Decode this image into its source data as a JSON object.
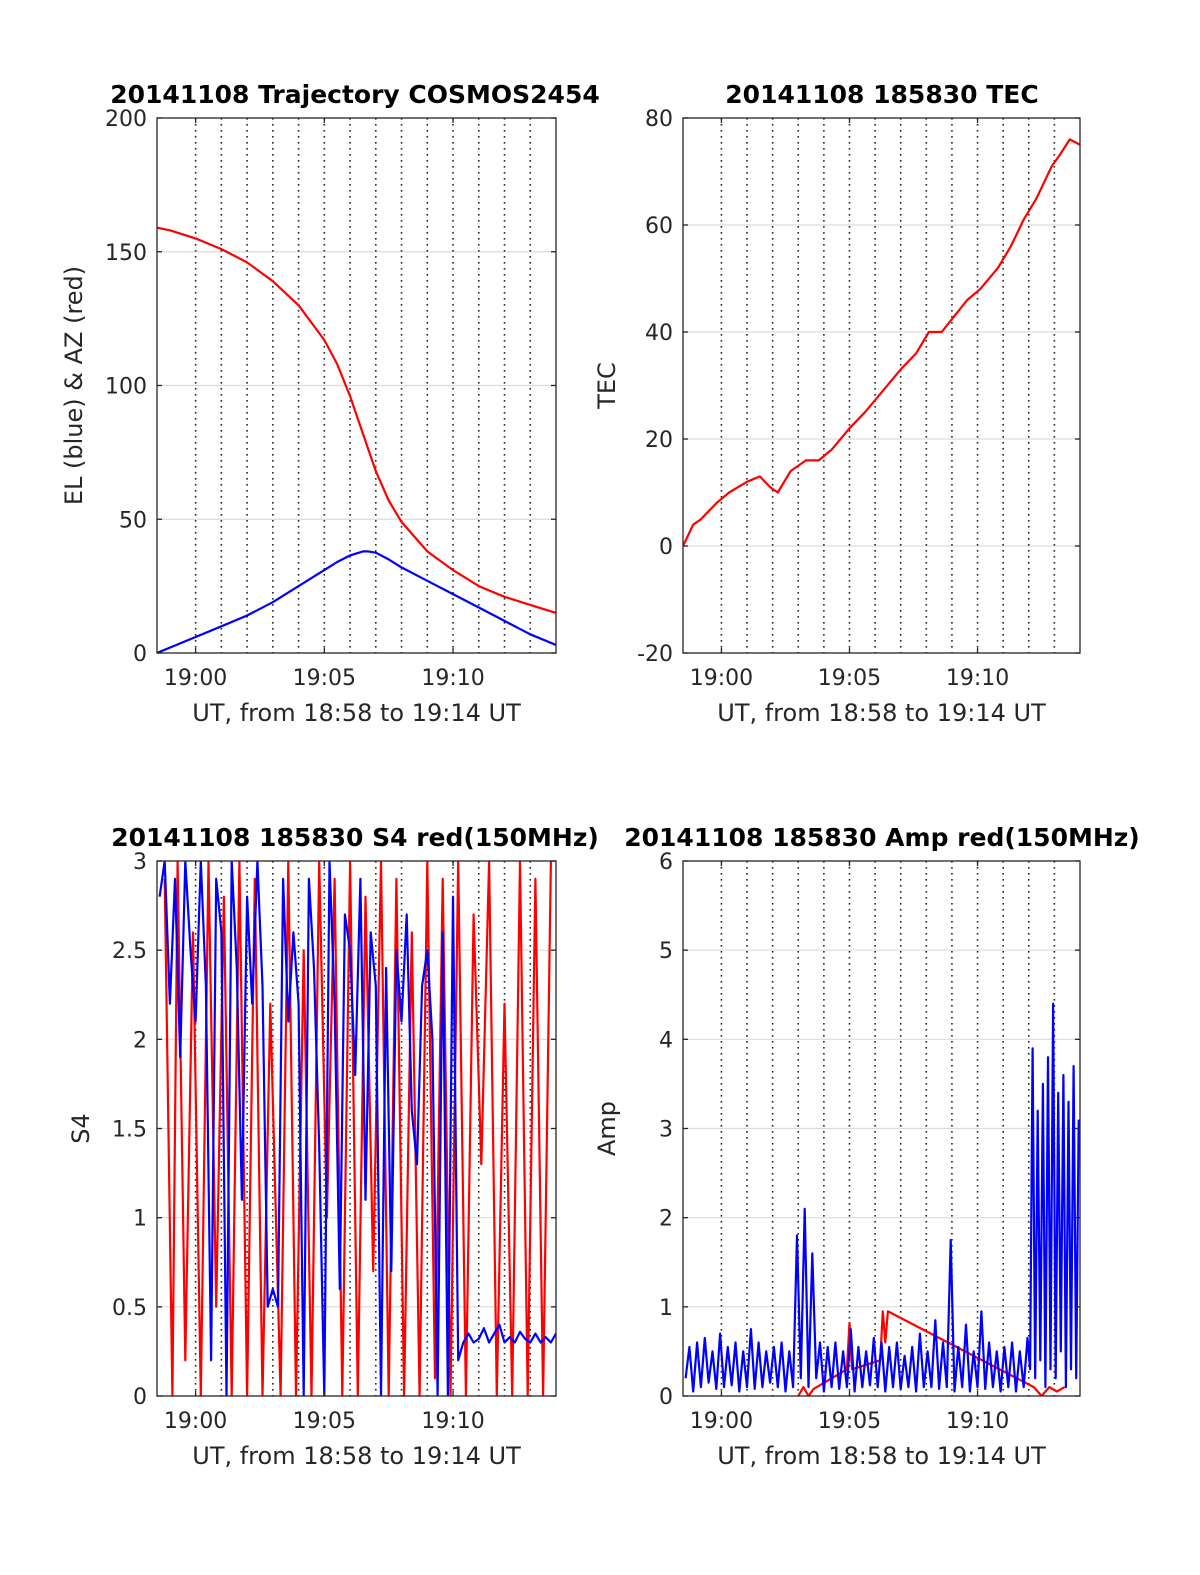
{
  "colors": {
    "red": "#ff0000",
    "blue": "#0000ff",
    "axis": "#262626",
    "grid": "#dcdcdc"
  },
  "chart_data": [
    {
      "type": "line",
      "title": "20141108 Trajectory COSMOS2454",
      "xlabel": "UT, from 18:58 to 19:14 UT",
      "ylabel": "EL (blue) & AZ (red)",
      "xlim_min": [
        1138.5,
        1154
      ],
      "ylim": [
        0,
        200
      ],
      "yticks": [
        0,
        50,
        100,
        150,
        200
      ],
      "ytick_labels": [
        "0",
        "50",
        "100",
        "150",
        "200"
      ],
      "xticks_min": [
        1140,
        1145,
        1150
      ],
      "xtick_labels": [
        "19:00",
        "19:05",
        "19:10"
      ],
      "vgrid_min": [
        1140,
        1141,
        1142,
        1143,
        1144,
        1145,
        1146,
        1147,
        1148,
        1149,
        1150,
        1151,
        1152,
        1153
      ],
      "grid": true,
      "series": [
        {
          "color": "red",
          "x": [
            1138.5,
            1139,
            1140,
            1141,
            1142,
            1143,
            1144,
            1145,
            1145.5,
            1146,
            1146.5,
            1147,
            1147.5,
            1148,
            1149,
            1150,
            1151,
            1152,
            1153,
            1154
          ],
          "y": [
            159,
            158,
            155,
            151,
            146,
            139,
            130,
            117,
            108,
            96,
            82,
            68,
            57,
            49,
            38,
            31,
            25,
            21,
            18,
            15
          ]
        },
        {
          "color": "blue",
          "x": [
            1138.5,
            1139,
            1140,
            1141,
            1142,
            1143,
            1144,
            1145,
            1145.5,
            1146,
            1146.5,
            1146.7,
            1147,
            1147.5,
            1148,
            1149,
            1150,
            1151,
            1152,
            1153,
            1154
          ],
          "y": [
            0,
            2,
            6,
            10,
            14,
            19,
            25,
            31,
            34,
            36.5,
            38,
            38,
            37.5,
            35,
            32,
            27,
            22,
            17,
            12,
            7,
            3
          ]
        }
      ]
    },
    {
      "type": "line",
      "title": "20141108 185830 TEC",
      "xlabel": "UT, from 18:58 to 19:14 UT",
      "ylabel": "TEC",
      "xlim_min": [
        1138.5,
        1154
      ],
      "ylim": [
        -20,
        80
      ],
      "yticks": [
        -20,
        0,
        20,
        40,
        60,
        80
      ],
      "ytick_labels": [
        "-20",
        "0",
        "20",
        "40",
        "60",
        "80"
      ],
      "xticks_min": [
        1140,
        1145,
        1150
      ],
      "xtick_labels": [
        "19:00",
        "19:05",
        "19:10"
      ],
      "vgrid_min": [
        1140,
        1141,
        1142,
        1143,
        1144,
        1145,
        1146,
        1147,
        1148,
        1149,
        1150,
        1151,
        1152,
        1153
      ],
      "grid": true,
      "series": [
        {
          "color": "red",
          "x": [
            1138.5,
            1138.9,
            1139.2,
            1139.8,
            1140.3,
            1141,
            1141.5,
            1141.9,
            1142.2,
            1142.7,
            1143.3,
            1143.8,
            1144.3,
            1145,
            1145.6,
            1146.3,
            1147,
            1147.6,
            1148.1,
            1148.6,
            1149.1,
            1149.6,
            1150.1,
            1150.8,
            1151.3,
            1151.8,
            1152.3,
            1152.9,
            1153.2,
            1153.6,
            1154
          ],
          "y": [
            0,
            4,
            5,
            8,
            10,
            12,
            13,
            11,
            10,
            14,
            16,
            16,
            18,
            22,
            25,
            29,
            33,
            36,
            40,
            40,
            43,
            46,
            48,
            52,
            56,
            61,
            65,
            71,
            73,
            76,
            75
          ]
        }
      ]
    },
    {
      "type": "line",
      "title": "20141108 185830 S4 red(150MHz)",
      "xlabel": "UT, from 18:58 to 19:14 UT",
      "ylabel": "S4",
      "xlim_min": [
        1138.5,
        1154
      ],
      "ylim": [
        0,
        3
      ],
      "yticks": [
        0,
        0.5,
        1,
        1.5,
        2,
        2.5,
        3
      ],
      "ytick_labels": [
        "0",
        "0.5",
        "1",
        "1.5",
        "2",
        "2.5",
        "3"
      ],
      "xticks_min": [
        1140,
        1145,
        1150
      ],
      "xtick_labels": [
        "19:00",
        "19:05",
        "19:10"
      ],
      "vgrid_min": [
        1140,
        1141,
        1142,
        1143,
        1144,
        1145,
        1146,
        1147,
        1148,
        1149,
        1150,
        1151,
        1152,
        1153
      ],
      "grid": true,
      "series": [
        {
          "color": "red",
          "x": [
            1138.8,
            1139.1,
            1139.3,
            1139.6,
            1139.9,
            1140.2,
            1140.5,
            1140.8,
            1141.1,
            1141.4,
            1141.7,
            1142.0,
            1142.3,
            1142.6,
            1142.9,
            1143.3,
            1143.6,
            1143.9,
            1144.2,
            1144.5,
            1144.8,
            1145.1,
            1145.4,
            1145.7,
            1146.0,
            1146.3,
            1146.6,
            1146.9,
            1147.2,
            1147.5,
            1147.8,
            1148.1,
            1148.4,
            1148.7,
            1149.0,
            1149.3,
            1149.6,
            1149.9,
            1150.2,
            1150.5,
            1150.8,
            1151.1,
            1151.4,
            1151.7,
            1152.0,
            1152.3,
            1152.6,
            1152.9,
            1153.2,
            1153.5,
            1153.8
          ],
          "y": [
            2.9,
            0,
            3,
            0.2,
            2.6,
            0,
            3,
            0.5,
            2.8,
            0,
            3,
            0,
            2.9,
            0,
            2.2,
            0,
            3,
            0,
            2.5,
            0,
            3,
            1,
            2.9,
            0,
            3,
            0,
            2.8,
            0.7,
            3,
            0,
            2.9,
            0,
            2.6,
            0,
            3,
            0.1,
            2.9,
            0,
            3,
            0,
            2.7,
            1.3,
            3,
            0,
            2.2,
            0,
            3,
            0,
            2.9,
            0,
            3
          ]
        },
        {
          "color": "blue",
          "x": [
            1138.6,
            1138.8,
            1139,
            1139.2,
            1139.4,
            1139.6,
            1139.8,
            1140,
            1140.2,
            1140.4,
            1140.6,
            1140.8,
            1141,
            1141.2,
            1141.4,
            1141.6,
            1141.8,
            1142,
            1142.2,
            1142.4,
            1142.6,
            1142.8,
            1143,
            1143.2,
            1143.4,
            1143.6,
            1143.8,
            1144,
            1144.2,
            1144.4,
            1144.6,
            1144.8,
            1145,
            1145.2,
            1145.4,
            1145.6,
            1145.8,
            1146,
            1146.2,
            1146.4,
            1146.6,
            1146.8,
            1147,
            1147.2,
            1147.4,
            1147.6,
            1147.8,
            1148,
            1148.2,
            1148.4,
            1148.6,
            1148.8,
            1149,
            1149.2,
            1149.4,
            1149.6,
            1149.8,
            1150,
            1150.2,
            1150.4,
            1150.6,
            1150.8,
            1151,
            1151.2,
            1151.4,
            1151.6,
            1151.8,
            1152,
            1152.2,
            1152.4,
            1152.6,
            1152.8,
            1153,
            1153.2,
            1153.4,
            1153.6,
            1153.8,
            1154
          ],
          "y": [
            2.8,
            3,
            2.2,
            2.9,
            1.9,
            3,
            2.5,
            2.1,
            3,
            2.3,
            0.2,
            2.9,
            2.6,
            0,
            3,
            2.4,
            1.1,
            2.8,
            2.2,
            3,
            2.3,
            0.5,
            0.6,
            0.5,
            2.9,
            2.1,
            2.6,
            2.2,
            0,
            2.9,
            2.4,
            1.4,
            0,
            3,
            2.2,
            0.6,
            2.7,
            2.5,
            1.8,
            2.9,
            1.1,
            2.6,
            2.3,
            0,
            2.4,
            0.7,
            2.5,
            2.1,
            2.7,
            1.6,
            1.3,
            2.3,
            2.5,
            2.0,
            0,
            2.6,
            0,
            2.8,
            0.2,
            0.3,
            0.35,
            0.3,
            0.32,
            0.38,
            0.3,
            0.35,
            0.4,
            0.3,
            0.33,
            0.3,
            0.36,
            0.32,
            0.3,
            0.35,
            0.3,
            0.33,
            0.3,
            0.35
          ]
        }
      ]
    },
    {
      "type": "line",
      "title": "20141108 185830 Amp red(150MHz)",
      "xlabel": "UT, from 18:58 to 19:14 UT",
      "ylabel": "Amp",
      "xlim_min": [
        1138.5,
        1154
      ],
      "ylim": [
        0,
        6
      ],
      "yticks": [
        0,
        1,
        2,
        3,
        4,
        5,
        6
      ],
      "ytick_labels": [
        "0",
        "1",
        "2",
        "3",
        "4",
        "5",
        "6"
      ],
      "xticks_min": [
        1140,
        1145,
        1150
      ],
      "xtick_labels": [
        "19:00",
        "19:05",
        "19:10"
      ],
      "vgrid_min": [
        1140,
        1141,
        1142,
        1143,
        1144,
        1145,
        1146,
        1147,
        1148,
        1149,
        1150,
        1151,
        1152,
        1153
      ],
      "grid": true,
      "series": [
        {
          "color": "red",
          "x": [
            1143,
            1143.2,
            1143.4,
            1143.6,
            1144.9,
            1145.0,
            1145.1,
            1146.2,
            1146.3,
            1146.4,
            1146.5,
            1152.2,
            1152.5,
            1152.8,
            1153.1,
            1153.4
          ],
          "y": [
            0,
            0.1,
            0,
            0.08,
            0.3,
            0.82,
            0.3,
            0.4,
            0.95,
            0.6,
            0.95,
            0.1,
            0,
            0.1,
            0.05,
            0.1
          ]
        },
        {
          "color": "blue",
          "x": [
            1138.6,
            1138.75,
            1138.9,
            1139.05,
            1139.2,
            1139.35,
            1139.5,
            1139.65,
            1139.8,
            1139.95,
            1140.1,
            1140.25,
            1140.4,
            1140.55,
            1140.7,
            1140.85,
            1141,
            1141.15,
            1141.3,
            1141.45,
            1141.6,
            1141.75,
            1141.9,
            1142.05,
            1142.2,
            1142.35,
            1142.5,
            1142.65,
            1142.8,
            1142.95,
            1143.1,
            1143.25,
            1143.4,
            1143.55,
            1143.7,
            1143.85,
            1144,
            1144.15,
            1144.3,
            1144.45,
            1144.6,
            1144.75,
            1144.9,
            1145.05,
            1145.2,
            1145.35,
            1145.5,
            1145.65,
            1145.8,
            1145.95,
            1146.1,
            1146.25,
            1146.4,
            1146.55,
            1146.7,
            1146.85,
            1147,
            1147.15,
            1147.3,
            1147.45,
            1147.6,
            1147.75,
            1147.9,
            1148.05,
            1148.2,
            1148.35,
            1148.5,
            1148.65,
            1148.8,
            1148.95,
            1149.1,
            1149.25,
            1149.4,
            1149.55,
            1149.7,
            1149.85,
            1150,
            1150.15,
            1150.3,
            1150.45,
            1150.6,
            1150.75,
            1150.9,
            1151.05,
            1151.2,
            1151.35,
            1151.5,
            1151.65,
            1151.8,
            1151.95,
            1152.05,
            1152.15,
            1152.25,
            1152.35,
            1152.45,
            1152.55,
            1152.65,
            1152.75,
            1152.85,
            1152.95,
            1153.05,
            1153.15,
            1153.25,
            1153.35,
            1153.45,
            1153.55,
            1153.65,
            1153.75,
            1153.85,
            1153.95
          ],
          "y": [
            0.2,
            0.55,
            0.05,
            0.6,
            0.1,
            0.65,
            0.15,
            0.5,
            0.08,
            0.7,
            0.1,
            0.55,
            0.12,
            0.6,
            0.05,
            0.5,
            0.1,
            0.75,
            0.08,
            0.6,
            0.1,
            0.5,
            0.15,
            0.55,
            0.1,
            0.6,
            0.05,
            0.5,
            0.1,
            1.8,
            0.2,
            2.1,
            0.1,
            1.6,
            0.2,
            0.6,
            0.05,
            0.55,
            0.1,
            0.6,
            0.08,
            0.5,
            0.1,
            0.75,
            0.05,
            0.55,
            0.1,
            0.5,
            0.12,
            0.65,
            0.1,
            0.6,
            0.05,
            0.55,
            0.1,
            0.6,
            0.08,
            0.45,
            0.1,
            0.55,
            0.05,
            0.7,
            0.1,
            0.5,
            0.1,
            0.85,
            0.08,
            0.6,
            0.1,
            1.75,
            0.05,
            0.55,
            0.1,
            0.8,
            0.05,
            0.5,
            0.1,
            0.95,
            0.08,
            0.6,
            0.1,
            0.5,
            0.05,
            0.55,
            0.1,
            0.6,
            0.05,
            0.5,
            0.1,
            0.65,
            0.3,
            3.9,
            0.2,
            3.2,
            0.4,
            3.5,
            0.1,
            3.8,
            0.3,
            4.4,
            0.2,
            3.4,
            0.5,
            3.6,
            0.1,
            3.3,
            0.3,
            3.7,
            0.2,
            3.1
          ]
        }
      ]
    }
  ]
}
